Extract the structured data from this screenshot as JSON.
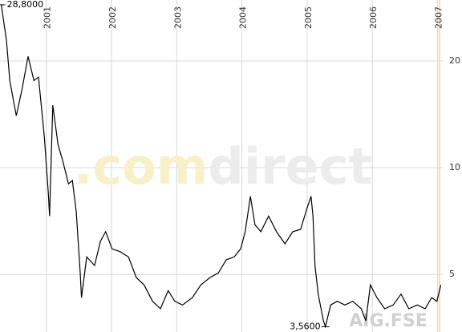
{
  "chart_data": {
    "type": "line",
    "log_scale": true,
    "grid": true,
    "color": "#000000",
    "watermark": [
      ".com",
      "direct"
    ],
    "symbol": "AIG.FSE",
    "x": [
      2000.31,
      2000.39,
      2000.44,
      2000.54,
      2000.63,
      2000.72,
      2000.81,
      2000.88,
      2000.97,
      2001.03,
      2001.05,
      2001.1,
      2001.18,
      2001.25,
      2001.34,
      2001.4,
      2001.46,
      2001.52,
      2001.54,
      2001.62,
      2001.74,
      2001.83,
      2001.91,
      2002.01,
      2002.13,
      2002.26,
      2002.38,
      2002.5,
      2002.63,
      2002.75,
      2002.87,
      2002.97,
      2003.09,
      2003.24,
      2003.37,
      2003.51,
      2003.64,
      2003.76,
      2003.88,
      2003.98,
      2004.05,
      2004.13,
      2004.2,
      2004.29,
      2004.41,
      2004.53,
      2004.66,
      2004.78,
      2004.9,
      2005.0,
      2005.06,
      2005.09,
      2005.12,
      2005.17,
      2005.25,
      2005.28,
      2005.36,
      2005.46,
      2005.58,
      2005.7,
      2005.83,
      2005.9,
      2005.97,
      2006.07,
      2006.19,
      2006.32,
      2006.44,
      2006.56,
      2006.69,
      2006.81,
      2006.91,
      2006.99,
      2007.05
    ],
    "values": [
      28.8,
      22.8,
      17.6,
      14.0,
      16.7,
      20.6,
      17.6,
      18.0,
      12.2,
      8.5,
      7.3,
      15.0,
      11.6,
      10.5,
      9.0,
      9.2,
      7.5,
      5.05,
      4.3,
      5.6,
      5.3,
      6.2,
      6.6,
      5.9,
      5.8,
      5.6,
      4.9,
      4.67,
      4.2,
      4.0,
      4.5,
      4.2,
      4.1,
      4.3,
      4.67,
      4.9,
      5.05,
      5.5,
      5.6,
      5.9,
      6.6,
      8.3,
      6.9,
      6.6,
      7.3,
      6.6,
      6.1,
      6.6,
      6.7,
      7.7,
      8.3,
      7.3,
      5.3,
      4.4,
      3.7,
      3.56,
      4.1,
      4.2,
      4.1,
      4.2,
      4.0,
      3.7,
      4.67,
      4.3,
      4.0,
      4.1,
      4.4,
      4.0,
      4.1,
      4.0,
      4.3,
      4.2,
      4.67
    ],
    "xlim": [
      2000.29,
      2007.08
    ],
    "xticks": [
      2001,
      2002,
      2003,
      2004,
      2005,
      2006,
      2007
    ],
    "ylim": [
      3.44,
      29.7
    ],
    "yticks": [
      5,
      10,
      20
    ],
    "annotations": [
      {
        "label": "28,8000",
        "x": 2000.31,
        "y": 28.8
      },
      {
        "label": "3,5600",
        "x": 2005.28,
        "y": 3.56
      }
    ]
  }
}
